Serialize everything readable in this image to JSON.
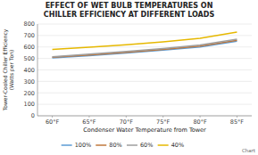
{
  "chart_data": {
    "type": "line",
    "title": "EFFECT OF WET BULB TEMPERATURES ON\nCHILLER EFFICIENCY AT DIFFERENT LOADS",
    "x_label": "Condenser Water Temperature from Tower",
    "y_label": "Tower-Cooled Chiller Efficiency\n(Watts per Ton)",
    "x": [
      60,
      65,
      70,
      75,
      80,
      85
    ],
    "xlim": [
      58,
      87
    ],
    "xticks": [
      {
        "value": 60,
        "label": "60°F"
      },
      {
        "value": 65,
        "label": "65°F"
      },
      {
        "value": 70,
        "label": "70°F"
      },
      {
        "value": 75,
        "label": "75°F"
      },
      {
        "value": 80,
        "label": "80°F"
      },
      {
        "value": 85,
        "label": "85°F"
      }
    ],
    "ylim": [
      0,
      800
    ],
    "yticks": [
      0,
      100,
      200,
      300,
      400,
      500,
      600,
      700,
      800
    ],
    "series": [
      {
        "name": "100%",
        "color": "#5b9bd5",
        "values": [
          505,
          525,
          548,
          572,
          600,
          650
        ]
      },
      {
        "name": "80%",
        "color": "#c0783c",
        "values": [
          510,
          530,
          554,
          578,
          608,
          658
        ]
      },
      {
        "name": "60%",
        "color": "#9e9e9e",
        "values": [
          515,
          537,
          561,
          586,
          617,
          668
        ]
      },
      {
        "name": "40%",
        "color": "#e6b800",
        "values": [
          578,
          598,
          620,
          645,
          675,
          730
        ]
      }
    ],
    "grid": true,
    "legend": "bottom",
    "annotations": [
      "Chart"
    ]
  }
}
